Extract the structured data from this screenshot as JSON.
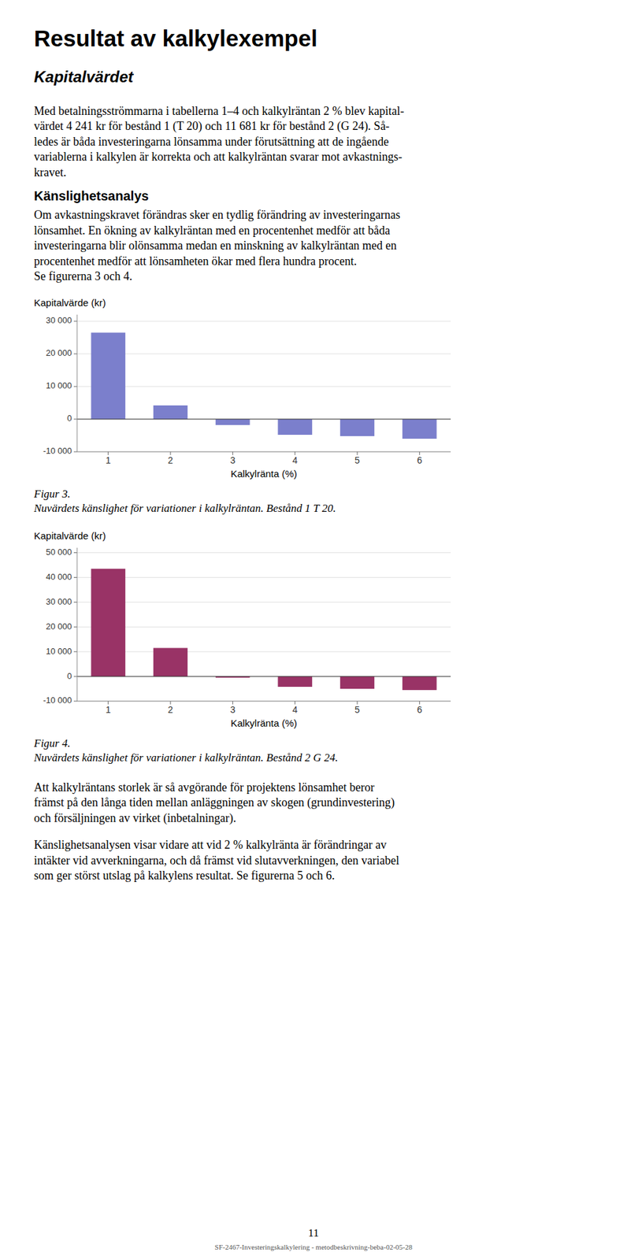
{
  "page_title": "Resultat av kalkylexempel",
  "subtitle": "Kapitalvärdet",
  "para1_lines": [
    "Med betalningsströmmarna i tabellerna 1–4 och kalkylräntan 2 % blev kapital-",
    "värdet 4 241 kr för bestånd 1 (T 20) och 11 681 kr för bestånd 2 (G 24). Så-",
    "ledes är båda investeringarna lönsamma under förutsättning att de ingående",
    "variablerna i kalkylen är korrekta och att kalkylräntan svarar mot avkastnings-",
    "kravet."
  ],
  "section2": "Känslighetsanalys",
  "para2_lines": [
    "Om avkastningskravet förändras sker en tydlig förändring av investeringarnas",
    "lönsamhet. En ökning av kalkylräntan med en procentenhet medför att båda",
    "investeringarna blir olönsamma medan en minskning av kalkylräntan med en",
    "procentenhet medför att lönsamheten ökar med flera hundra procent.",
    "Se figurerna 3 och 4."
  ],
  "chart_data": [
    {
      "type": "bar",
      "ylabel": "Kapitalvärde (kr)",
      "xlabel": "Kalkylränta (%)",
      "categories": [
        1,
        2,
        3,
        4,
        5,
        6
      ],
      "values": [
        26500,
        4200,
        -1800,
        -4800,
        -5200,
        -6000
      ],
      "color": "#7B7FCC",
      "ylim": [
        -10000,
        32000
      ],
      "yticks": [
        {
          "value": -10000,
          "label": "-10 000"
        },
        0,
        {
          "value": 10000,
          "label": "10 000"
        },
        {
          "value": 20000,
          "label": "20 000"
        },
        {
          "value": 30000,
          "label": "30 000"
        }
      ],
      "grid": true,
      "fig_label": "Figur 3.",
      "fig_caption": "Nuvärdets känslighet för variationer i kalkylräntan. Bestånd 1 T 20."
    },
    {
      "type": "bar",
      "ylabel": "Kapitalvärde (kr)",
      "xlabel": "Kalkylränta (%)",
      "categories": [
        1,
        2,
        3,
        4,
        5,
        6
      ],
      "values": [
        43500,
        11500,
        -500,
        -4200,
        -5000,
        -5500
      ],
      "color": "#993366",
      "ylim": [
        -10000,
        52000
      ],
      "yticks": [
        {
          "value": -10000,
          "label": "-10 000"
        },
        0,
        {
          "value": 10000,
          "label": "10 000"
        },
        {
          "value": 20000,
          "label": "20 000"
        },
        {
          "value": 30000,
          "label": "30 000"
        },
        {
          "value": 40000,
          "label": "40 000"
        },
        {
          "value": 50000,
          "label": "50 000"
        }
      ],
      "grid": true,
      "fig_label": "Figur 4.",
      "fig_caption": "Nuvärdets känslighet för variationer i kalkylräntan. Bestånd 2 G 24."
    }
  ],
  "para3_lines": [
    "Att kalkylräntans storlek är så avgörande för projektens lönsamhet beror",
    "främst på den långa tiden mellan anläggningen av skogen (grundinvestering)",
    "och försäljningen av virket (inbetalningar)."
  ],
  "para4_lines": [
    "Känslighetsanalysen visar vidare att vid 2 % kalkylränta är förändringar av",
    "intäkter vid avverkningarna, och då främst vid slutavverkningen, den variabel",
    "som ger störst utslag på kalkylens resultat. Se figurerna 5 och 6."
  ],
  "page_number": "11",
  "footer": "SF-2467-Investeringskalkylering - metodbeskrivning-beba-02-05-28"
}
